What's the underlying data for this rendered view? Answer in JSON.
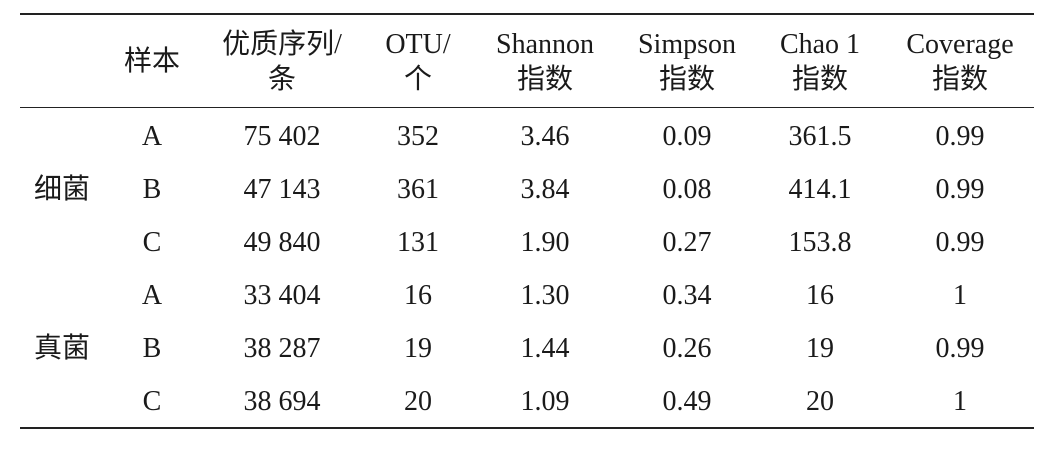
{
  "table": {
    "columns": [
      [
        "样本"
      ],
      [
        "优质序列/",
        "条"
      ],
      [
        "OTU/",
        "个"
      ],
      [
        "Shannon",
        "指数"
      ],
      [
        "Simpson",
        "指数"
      ],
      [
        "Chao 1",
        "指数"
      ],
      [
        "Coverage",
        "指数"
      ]
    ],
    "groups": [
      {
        "label": "细菌",
        "rows": [
          [
            "A",
            "75 402",
            "352",
            "3.46",
            "0.09",
            "361.5",
            "0.99"
          ],
          [
            "B",
            "47 143",
            "361",
            "3.84",
            "0.08",
            "414.1",
            "0.99"
          ],
          [
            "C",
            "49 840",
            "131",
            "1.90",
            "0.27",
            "153.8",
            "0.99"
          ]
        ]
      },
      {
        "label": "真菌",
        "rows": [
          [
            "A",
            "33 404",
            "16",
            "1.30",
            "0.34",
            "16",
            "1"
          ],
          [
            "B",
            "38 287",
            "19",
            "1.44",
            "0.26",
            "19",
            "0.99"
          ],
          [
            "C",
            "38 694",
            "20",
            "1.09",
            "0.49",
            "20",
            "1"
          ]
        ]
      }
    ]
  }
}
